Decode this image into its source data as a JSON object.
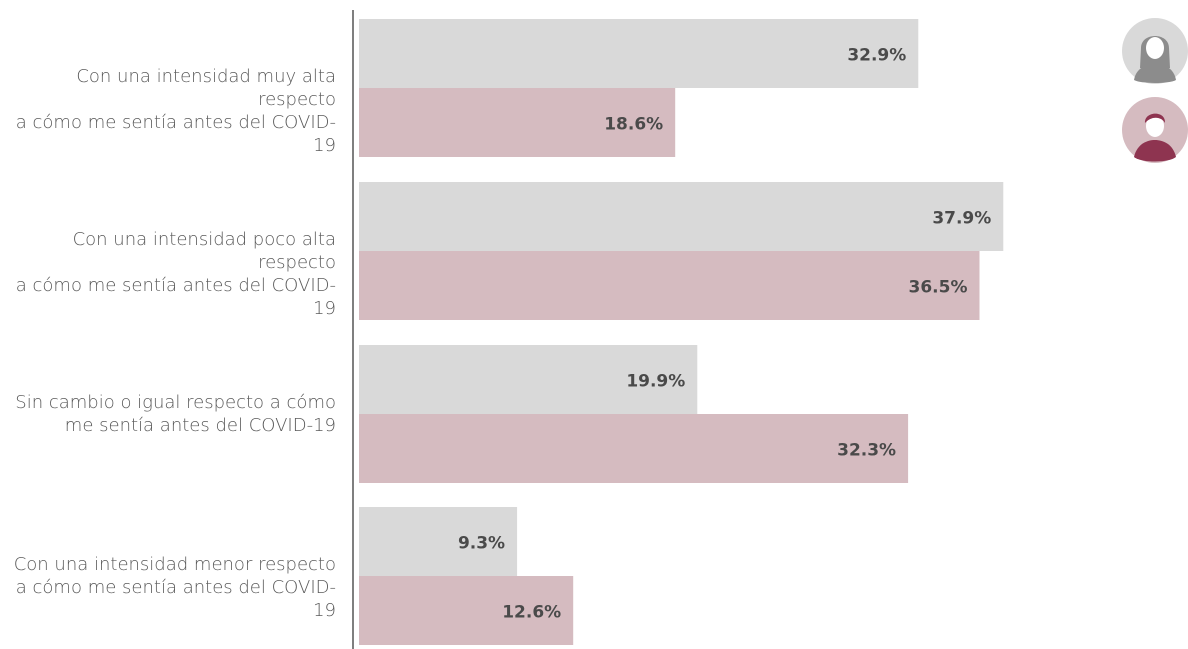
{
  "chart_data": {
    "type": "bar",
    "orientation": "horizontal",
    "categories": [
      [
        "Con una intensidad muy alta respecto",
        "a cómo me sentía antes del COVID-19"
      ],
      [
        "Con una intensidad poco alta respecto",
        "a cómo me sentía antes del COVID-19"
      ],
      [
        "Sin cambio o igual respecto a cómo",
        "me sentía antes del COVID-19"
      ],
      [
        "Con una intensidad menor respecto",
        "a cómo me sentía antes del COVID-19"
      ]
    ],
    "series": [
      {
        "legend_icon": "woman-avatar-icon",
        "color": "#d9d9d9",
        "values": [
          32.9,
          37.9,
          19.9,
          9.3
        ],
        "labels": [
          "32.9%",
          "37.9%",
          "19.9%",
          "9.3%"
        ]
      },
      {
        "legend_icon": "man-avatar-icon",
        "color": "#d5bbc0",
        "values": [
          18.6,
          36.5,
          32.3,
          12.6
        ],
        "labels": [
          "18.6%",
          "36.5%",
          "32.3%",
          "12.6%"
        ]
      }
    ],
    "xlim": [
      0,
      40
    ],
    "grid": false,
    "legend_placement": "top-right",
    "label_color": "#4a4a4a",
    "axis_color": "#7f7f7f",
    "icon_colors": {
      "woman_bg": "#d9d9d9",
      "woman_fg": "#8c8c8c",
      "man_bg": "#d5bbc0",
      "man_fg": "#8e3450",
      "skin": "#ffffff"
    }
  }
}
